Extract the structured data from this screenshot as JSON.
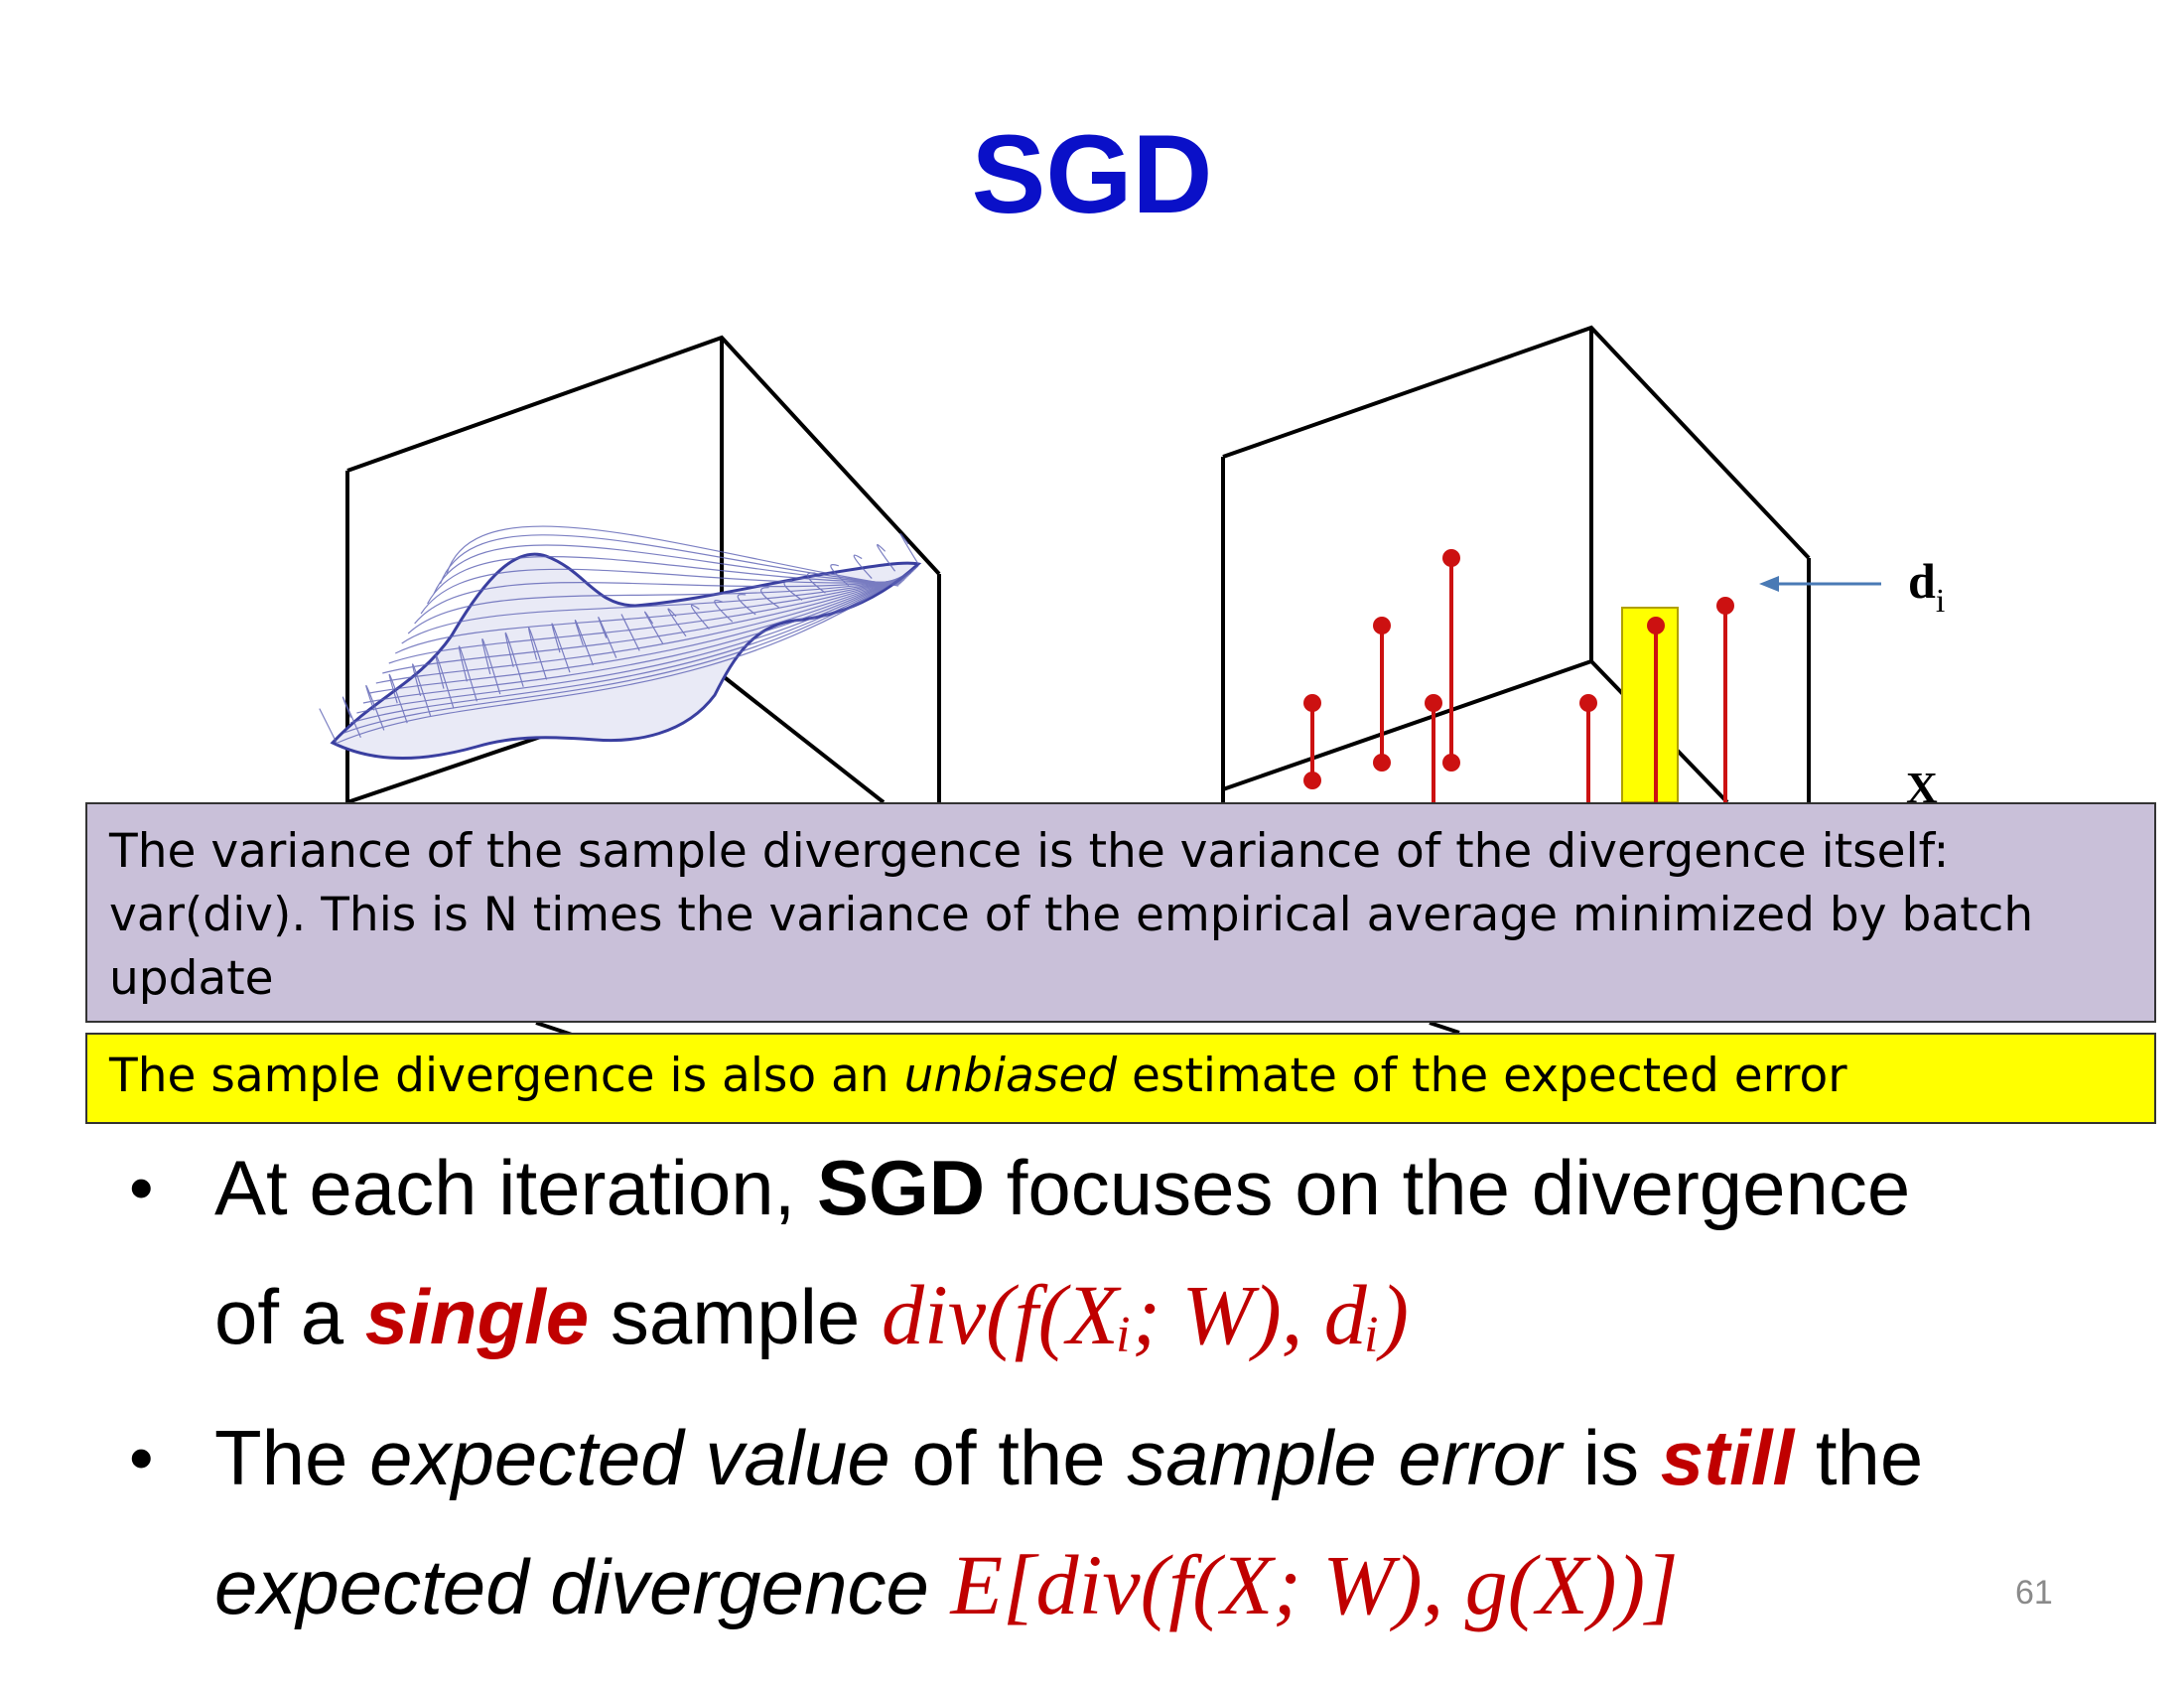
{
  "slide": {
    "title": "SGD",
    "page_number": "61"
  },
  "figure": {
    "left_surface_color": "#3a3fa0",
    "stem_color": "#cc1111",
    "highlight_color": "#ffff00",
    "arrow_color": "#4a7ab5",
    "label_d": "d",
    "label_d_sub": "i",
    "label_x": "X"
  },
  "notes": {
    "variance": "The variance of the sample divergence is the variance of the divergence itself: var(div). This is N times the variance of the empirical average minimized by batch update",
    "unbiased_before": "The sample divergence is also an ",
    "unbiased_emph": "unbiased",
    "unbiased_after": " estimate of the expected error"
  },
  "bullets": [
    {
      "line1_a": "At each iteration, ",
      "line1_bold": "SGD",
      "line1_b": " focuses on the divergence",
      "line2_a": "of a ",
      "line2_emph": "single",
      "line2_b": " sample ",
      "formula": "div(f(Xᵢ; W), dᵢ)"
    },
    {
      "line1_a": "The ",
      "line1_emph1": "expected value",
      "line1_b": " of the ",
      "line1_emph2": "sample error",
      "line1_c": " is ",
      "line1_emph3": "still",
      "line1_d": " the",
      "line2_emph": "expected divergence",
      "formula": "E[div(f(X; W), g(X))]"
    }
  ],
  "colors": {
    "title": "#0a10c8",
    "accent_red": "#c00000",
    "variance_box": "#c9c0d9",
    "unbiased_box": "#ffff00"
  }
}
